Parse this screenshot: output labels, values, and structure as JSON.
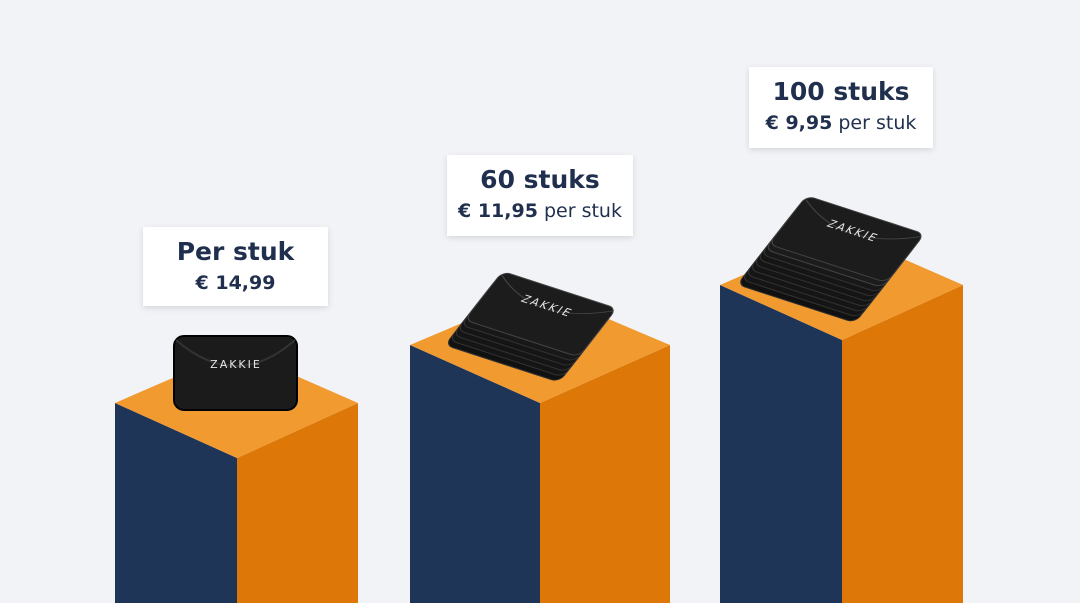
{
  "brand": "ZAKKIE",
  "tiers": [
    {
      "title": "Per stuk",
      "price": "€ 14,99"
    },
    {
      "title": "60 stuks",
      "price": "€ 11,95",
      "unit": "per stuk"
    },
    {
      "title": "100 stuks",
      "price": "€ 9,95",
      "unit": "per stuk"
    }
  ]
}
